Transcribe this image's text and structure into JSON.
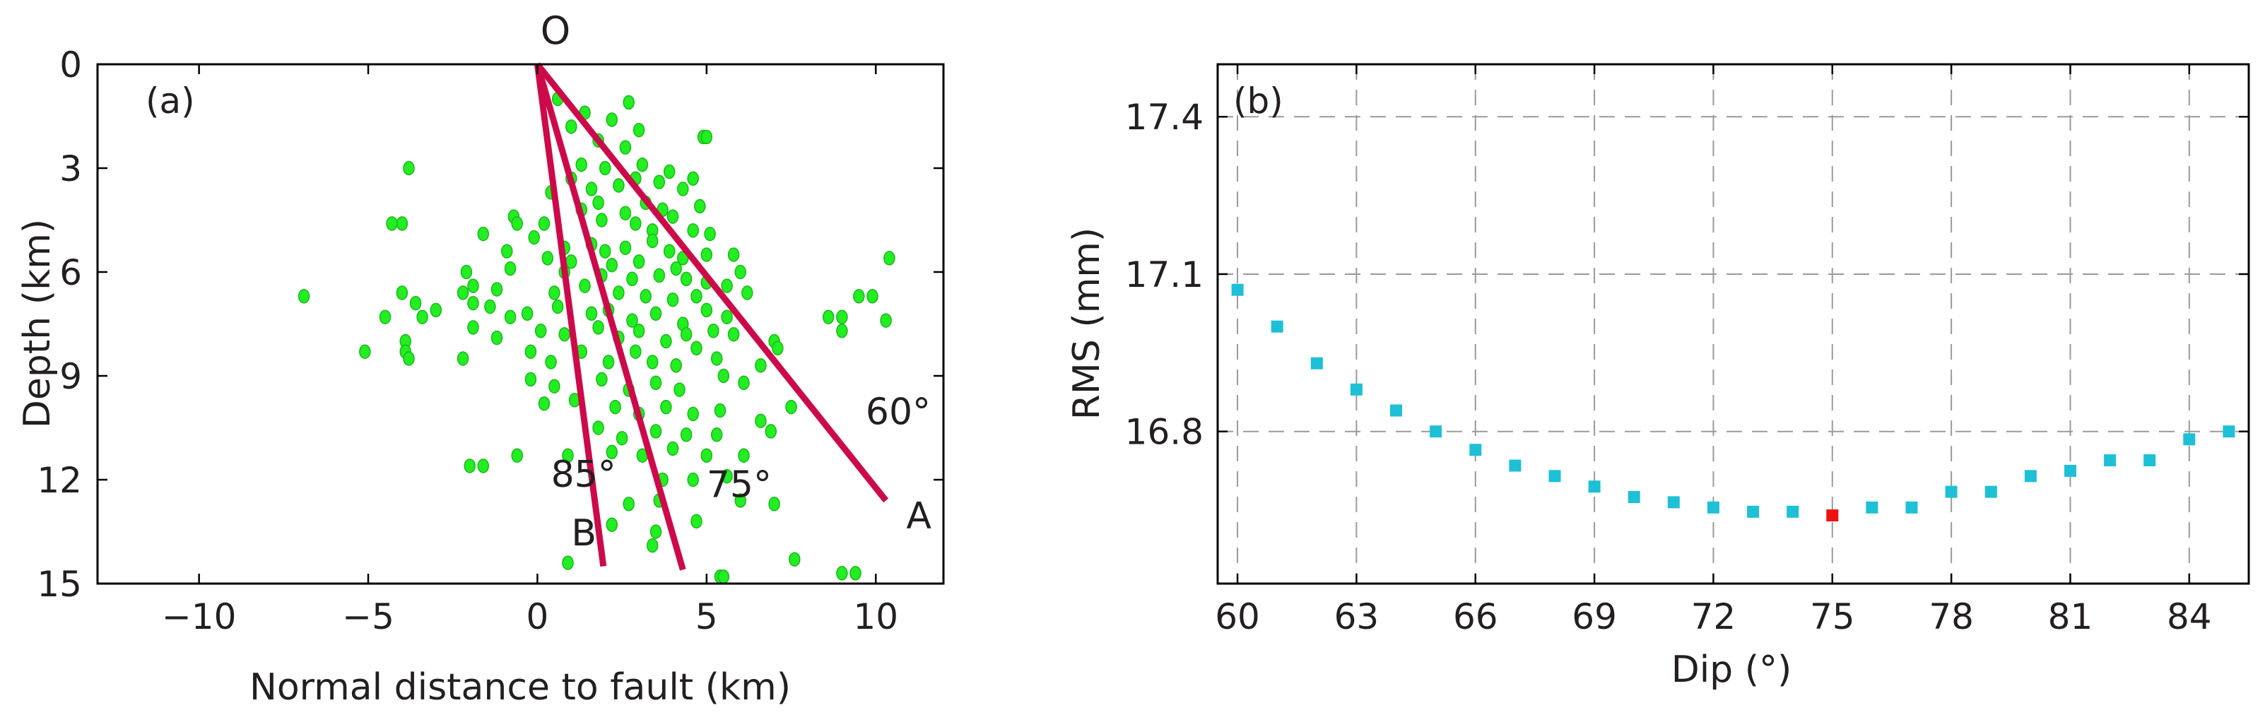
{
  "chart_data": [
    {
      "panel": "(a)",
      "type": "scatter",
      "xlabel": "Normal distance to fault (km)",
      "ylabel": "Depth (km)",
      "xlim": [
        -13,
        12
      ],
      "ylim": [
        15,
        0
      ],
      "xticks": [
        -10,
        -5,
        0,
        5,
        10
      ],
      "xtick_labels": [
        "−10",
        "−5",
        "0",
        "5",
        "10"
      ],
      "yticks": [
        0,
        3,
        6,
        9,
        12,
        15
      ],
      "ytick_labels": [
        "0",
        "3",
        "6",
        "9",
        "12",
        "15"
      ],
      "origin_label": "O",
      "fault_lines": [
        {
          "dip_label": "60°",
          "end_label": "A",
          "dip": 60,
          "start": [
            0,
            0
          ],
          "end": [
            10.3,
            12.6
          ],
          "dip_label_pos": [
            9.7,
            10.4
          ],
          "end_label_pos": [
            10.9,
            13.4
          ]
        },
        {
          "dip_label": "75°",
          "end_label": "",
          "dip": 75,
          "start": [
            0,
            0
          ],
          "end": [
            4.3,
            14.6
          ],
          "dip_label_pos": [
            5.0,
            12.5
          ],
          "end_label_pos": [
            0,
            0
          ]
        },
        {
          "dip_label": "85°",
          "end_label": "B",
          "dip": 85,
          "start": [
            0,
            0
          ],
          "end": [
            1.95,
            14.5
          ],
          "dip_label_pos": [
            0.4,
            12.2
          ],
          "end_label_pos": [
            1.0,
            13.9
          ]
        }
      ],
      "points": [
        [
          0.6,
          1.0
        ],
        [
          1.4,
          1.4
        ],
        [
          2.7,
          1.1
        ],
        [
          1.0,
          1.8
        ],
        [
          2.2,
          1.6
        ],
        [
          3.0,
          1.9
        ],
        [
          1.8,
          2.2
        ],
        [
          2.6,
          2.4
        ],
        [
          4.9,
          2.1
        ],
        [
          5.0,
          2.1
        ],
        [
          -3.8,
          3.0
        ],
        [
          1.3,
          2.9
        ],
        [
          2.0,
          3.0
        ],
        [
          3.1,
          2.9
        ],
        [
          1.0,
          3.3
        ],
        [
          2.9,
          3.3
        ],
        [
          3.9,
          3.1
        ],
        [
          4.6,
          3.3
        ],
        [
          0.4,
          3.7
        ],
        [
          1.6,
          3.6
        ],
        [
          2.4,
          3.5
        ],
        [
          3.6,
          3.4
        ],
        [
          4.3,
          3.6
        ],
        [
          -4.0,
          4.6
        ],
        [
          -4.3,
          4.6
        ],
        [
          -0.7,
          4.4
        ],
        [
          -0.6,
          4.6
        ],
        [
          1.3,
          4.2
        ],
        [
          1.8,
          4.0
        ],
        [
          2.6,
          4.3
        ],
        [
          3.2,
          4.0
        ],
        [
          3.7,
          4.2
        ],
        [
          4.0,
          4.4
        ],
        [
          4.8,
          4.1
        ],
        [
          0.2,
          4.6
        ],
        [
          1.9,
          4.5
        ],
        [
          2.9,
          4.6
        ],
        [
          3.4,
          4.8
        ],
        [
          4.6,
          4.8
        ],
        [
          5.1,
          4.9
        ],
        [
          -1.6,
          4.9
        ],
        [
          -0.1,
          5.0
        ],
        [
          0.8,
          5.3
        ],
        [
          1.6,
          5.2
        ],
        [
          2.0,
          5.4
        ],
        [
          2.6,
          5.3
        ],
        [
          3.4,
          5.1
        ],
        [
          3.9,
          5.4
        ],
        [
          4.3,
          5.6
        ],
        [
          -0.9,
          5.4
        ],
        [
          0.3,
          5.6
        ],
        [
          1.0,
          5.7
        ],
        [
          2.2,
          5.8
        ],
        [
          3.0,
          5.7
        ],
        [
          4.1,
          5.9
        ],
        [
          5.0,
          5.5
        ],
        [
          5.8,
          5.5
        ],
        [
          -6.9,
          6.7
        ],
        [
          -2.1,
          6.0
        ],
        [
          -1.9,
          6.4
        ],
        [
          -1.2,
          6.5
        ],
        [
          -0.8,
          5.9
        ],
        [
          0.8,
          6.0
        ],
        [
          1.9,
          6.1
        ],
        [
          2.8,
          6.2
        ],
        [
          3.6,
          6.1
        ],
        [
          4.4,
          6.2
        ],
        [
          5.0,
          6.3
        ],
        [
          6.0,
          6.0
        ],
        [
          10.4,
          5.6
        ],
        [
          -4.0,
          6.6
        ],
        [
          -3.6,
          6.9
        ],
        [
          -3.0,
          7.1
        ],
        [
          -2.2,
          6.6
        ],
        [
          -1.9,
          6.9
        ],
        [
          -1.4,
          7.0
        ],
        [
          0.5,
          6.6
        ],
        [
          1.4,
          6.4
        ],
        [
          2.4,
          6.6
        ],
        [
          3.2,
          6.7
        ],
        [
          4.0,
          6.8
        ],
        [
          4.7,
          6.7
        ],
        [
          5.6,
          6.4
        ],
        [
          6.2,
          6.6
        ],
        [
          9.5,
          6.7
        ],
        [
          9.9,
          6.7
        ],
        [
          -4.5,
          7.3
        ],
        [
          -3.4,
          7.3
        ],
        [
          -1.9,
          7.6
        ],
        [
          -0.8,
          7.3
        ],
        [
          -0.3,
          7.2
        ],
        [
          0.6,
          7.0
        ],
        [
          1.6,
          7.2
        ],
        [
          2.1,
          7.1
        ],
        [
          2.8,
          7.4
        ],
        [
          3.5,
          7.2
        ],
        [
          4.3,
          7.5
        ],
        [
          5.0,
          7.1
        ],
        [
          5.6,
          7.3
        ],
        [
          8.6,
          7.3
        ],
        [
          9.0,
          7.3
        ],
        [
          10.3,
          7.4
        ],
        [
          -5.1,
          8.3
        ],
        [
          -3.9,
          8.0
        ],
        [
          -3.9,
          8.3
        ],
        [
          -2.2,
          8.5
        ],
        [
          -1.2,
          7.9
        ],
        [
          0.1,
          7.7
        ],
        [
          0.8,
          7.8
        ],
        [
          1.8,
          7.6
        ],
        [
          2.4,
          7.9
        ],
        [
          3.0,
          7.7
        ],
        [
          3.8,
          8.0
        ],
        [
          4.4,
          7.8
        ],
        [
          5.2,
          7.7
        ],
        [
          5.8,
          7.8
        ],
        [
          7.0,
          8.0
        ],
        [
          9.0,
          7.7
        ],
        [
          -3.8,
          8.5
        ],
        [
          -0.2,
          8.3
        ],
        [
          0.4,
          8.6
        ],
        [
          1.3,
          8.3
        ],
        [
          2.1,
          8.6
        ],
        [
          2.9,
          8.3
        ],
        [
          3.4,
          8.6
        ],
        [
          4.1,
          8.7
        ],
        [
          4.7,
          8.2
        ],
        [
          5.3,
          8.5
        ],
        [
          6.6,
          8.7
        ],
        [
          7.1,
          8.2
        ],
        [
          -0.2,
          9.1
        ],
        [
          0.5,
          9.3
        ],
        [
          1.9,
          9.1
        ],
        [
          2.7,
          9.4
        ],
        [
          3.5,
          9.2
        ],
        [
          4.2,
          9.4
        ],
        [
          5.5,
          9.0
        ],
        [
          6.1,
          9.2
        ],
        [
          0.2,
          9.8
        ],
        [
          1.1,
          9.7
        ],
        [
          2.3,
          9.9
        ],
        [
          3.0,
          10.1
        ],
        [
          3.8,
          9.9
        ],
        [
          4.6,
          10.1
        ],
        [
          5.4,
          10.0
        ],
        [
          6.6,
          10.3
        ],
        [
          7.5,
          9.9
        ],
        [
          1.8,
          10.5
        ],
        [
          2.5,
          10.8
        ],
        [
          3.5,
          10.6
        ],
        [
          4.4,
          10.7
        ],
        [
          5.3,
          10.7
        ],
        [
          6.9,
          10.6
        ],
        [
          -2.0,
          11.6
        ],
        [
          -1.6,
          11.6
        ],
        [
          -0.6,
          11.3
        ],
        [
          0.9,
          11.3
        ],
        [
          2.2,
          11.2
        ],
        [
          3.1,
          11.3
        ],
        [
          4.0,
          11.1
        ],
        [
          5.0,
          11.3
        ],
        [
          6.1,
          11.3
        ],
        [
          3.7,
          12.0
        ],
        [
          4.6,
          12.0
        ],
        [
          5.6,
          11.9
        ],
        [
          2.7,
          12.7
        ],
        [
          3.6,
          12.6
        ],
        [
          6.0,
          12.6
        ],
        [
          7.0,
          12.7
        ],
        [
          2.2,
          13.3
        ],
        [
          3.5,
          13.5
        ],
        [
          4.7,
          13.2
        ],
        [
          3.4,
          13.9
        ],
        [
          0.9,
          14.4
        ],
        [
          7.6,
          14.3
        ],
        [
          5.4,
          14.8
        ],
        [
          5.5,
          14.8
        ],
        [
          9.0,
          14.7
        ],
        [
          9.4,
          14.7
        ]
      ]
    },
    {
      "panel": "(b)",
      "type": "scatter",
      "xlabel": "Dip (°)",
      "ylabel": "RMS (mm)",
      "xlim": [
        59.5,
        85.5
      ],
      "ylim": [
        16.51,
        17.5
      ],
      "grid": true,
      "xticks": [
        60,
        63,
        66,
        69,
        72,
        75,
        78,
        81,
        84
      ],
      "xtick_labels": [
        "60",
        "63",
        "66",
        "69",
        "72",
        "75",
        "78",
        "81",
        "84"
      ],
      "yticks": [
        16.8,
        17.1,
        17.4
      ],
      "ytick_labels": [
        "16.8",
        "17.1",
        "17.4"
      ],
      "x": [
        60,
        61,
        62,
        63,
        64,
        65,
        66,
        67,
        68,
        69,
        70,
        71,
        72,
        73,
        74,
        75,
        76,
        77,
        78,
        79,
        80,
        81,
        82,
        83,
        84,
        85
      ],
      "y": [
        17.07,
        17.0,
        16.93,
        16.88,
        16.84,
        16.8,
        16.765,
        16.735,
        16.715,
        16.695,
        16.675,
        16.665,
        16.655,
        16.647,
        16.647,
        16.64,
        16.655,
        16.655,
        16.685,
        16.685,
        16.715,
        16.725,
        16.745,
        16.745,
        16.785,
        16.8
      ],
      "highlight_x": 75,
      "colors": {
        "points": "#1ec0d6",
        "highlight": "#ee1111"
      }
    }
  ]
}
